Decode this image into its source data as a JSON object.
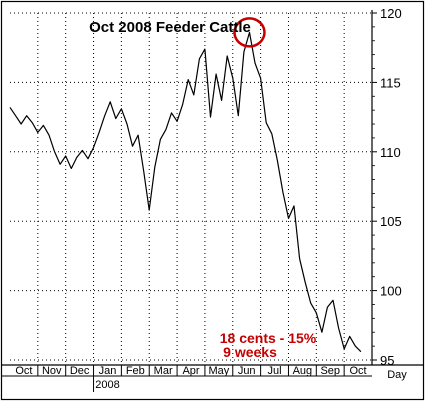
{
  "chart_data": {
    "type": "line",
    "title": "Oct 2008 Feeder Cattle",
    "xlabel": "",
    "ylabel": "",
    "x_axis_unit_label": "Day",
    "year_label": "2008",
    "ylim": [
      95,
      120
    ],
    "y_ticks": [
      95,
      100,
      105,
      110,
      115,
      120
    ],
    "grid": true,
    "months": [
      "Oct",
      "Nov",
      "Dec",
      "Jan",
      "Feb",
      "Mar",
      "Apr",
      "May",
      "Jun",
      "Jul",
      "Aug",
      "Sep",
      "Oct"
    ],
    "series": [
      {
        "name": "",
        "color": "#000000",
        "x": [
          0,
          0.2,
          0.4,
          0.6,
          0.8,
          1.0,
          1.2,
          1.4,
          1.6,
          1.8,
          2.0,
          2.2,
          2.4,
          2.6,
          2.8,
          3.0,
          3.2,
          3.4,
          3.6,
          3.8,
          4.0,
          4.2,
          4.4,
          4.6,
          4.8,
          5.0,
          5.2,
          5.4,
          5.6,
          5.8,
          6.0,
          6.2,
          6.4,
          6.6,
          6.8,
          7.0,
          7.2,
          7.4,
          7.6,
          7.8,
          8.0,
          8.2,
          8.4,
          8.6,
          8.8,
          9.0,
          9.2,
          9.4,
          9.6,
          9.8,
          10.0,
          10.2,
          10.4,
          10.6,
          10.8,
          11.0,
          11.2,
          11.4,
          11.6,
          11.8,
          12.0,
          12.2,
          12.4,
          12.6
        ],
        "values": [
          113.2,
          112.6,
          112.0,
          112.6,
          112.1,
          111.4,
          111.9,
          111.2,
          110.0,
          109.1,
          109.7,
          108.8,
          109.6,
          110.1,
          109.5,
          110.3,
          111.4,
          112.6,
          113.6,
          112.4,
          113.1,
          112.0,
          110.4,
          111.2,
          108.6,
          105.8,
          108.9,
          110.9,
          111.6,
          112.8,
          112.2,
          113.4,
          115.2,
          114.1,
          116.7,
          117.4,
          112.5,
          115.6,
          113.7,
          116.9,
          115.3,
          112.6,
          117.2,
          118.6,
          116.4,
          115.3,
          112.1,
          111.3,
          109.4,
          107.1,
          105.2,
          106.1,
          102.3,
          100.6,
          99.1,
          98.4,
          97.0,
          98.8,
          99.3,
          97.3,
          95.8,
          96.7,
          96.0,
          95.6
        ]
      }
    ],
    "annotations": {
      "circle_label": "",
      "text_line1": "18 cents - 15%",
      "text_line2": "9 weeks",
      "text_color": "#c40000",
      "circle_color": "#c40000",
      "circle_at": {
        "x": 8.6,
        "y": 118.6
      }
    }
  }
}
